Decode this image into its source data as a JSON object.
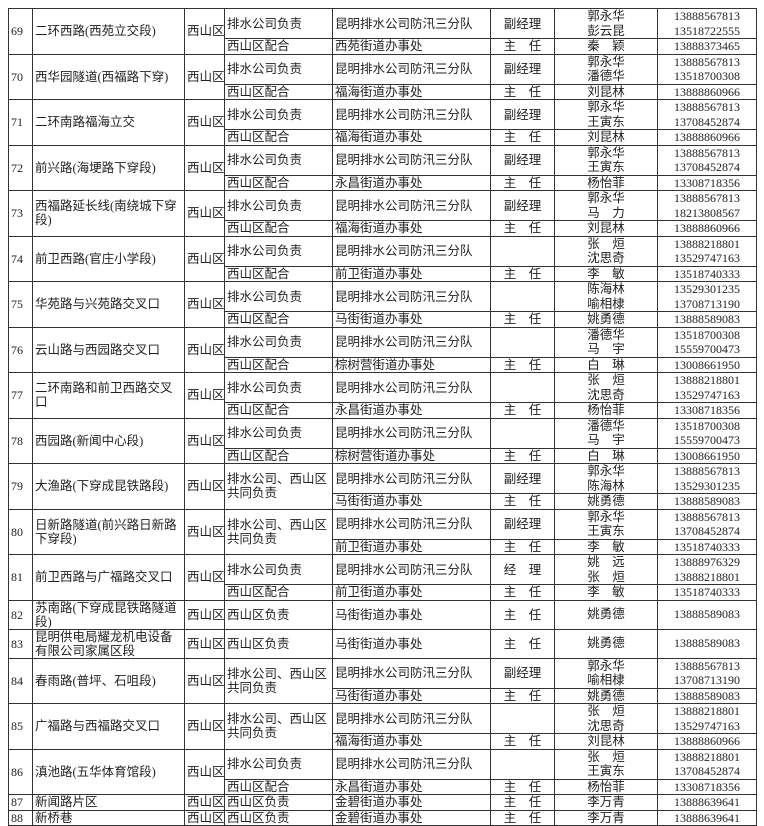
{
  "table": {
    "entries": [
      {
        "no": "69",
        "location": "二环西路(西苑立交段)",
        "district": "西山区",
        "subrows": [
          {
            "resp": "排水公司负责",
            "unit": "昆明排水公司防汛三分队",
            "position": "副经理",
            "names": [
              "郭永华",
              "彭云昆"
            ],
            "phones": [
              "13888567813",
              "13518722555"
            ]
          },
          {
            "resp": "西山区配合",
            "unit": "西苑街道办事处",
            "position": "主　任",
            "names": [
              "秦　颖"
            ],
            "phones": [
              "13888373465"
            ]
          }
        ]
      },
      {
        "no": "70",
        "location": "西华园隧道(西福路下穿)",
        "district": "西山区",
        "subrows": [
          {
            "resp": "排水公司负责",
            "unit": "昆明排水公司防汛三分队",
            "position": "副经理",
            "names": [
              "郭永华",
              "潘德华"
            ],
            "phones": [
              "13888567813",
              "13518700308"
            ]
          },
          {
            "resp": "西山区配合",
            "unit": "福海街道办事处",
            "position": "主　任",
            "names": [
              "刘昆林"
            ],
            "phones": [
              "13888860966"
            ]
          }
        ]
      },
      {
        "no": "71",
        "location": "二环南路福海立交",
        "district": "西山区",
        "subrows": [
          {
            "resp": "排水公司负责",
            "unit": "昆明排水公司防汛三分队",
            "position": "副经理",
            "names": [
              "郭永华",
              "王寅东"
            ],
            "phones": [
              "13888567813",
              "13708452874"
            ]
          },
          {
            "resp": "西山区配合",
            "unit": "福海街道办事处",
            "position": "主　任",
            "names": [
              "刘昆林"
            ],
            "phones": [
              "13888860966"
            ]
          }
        ]
      },
      {
        "no": "72",
        "location": "前兴路(海埂路下穿段)",
        "district": "西山区",
        "subrows": [
          {
            "resp": "排水公司负责",
            "unit": "昆明排水公司防汛三分队",
            "position": "副经理",
            "names": [
              "郭永华",
              "王寅东"
            ],
            "phones": [
              "13888567813",
              "13708452874"
            ]
          },
          {
            "resp": "西山区配合",
            "unit": "永昌街道办事处",
            "position": "主　任",
            "names": [
              "杨怡菲"
            ],
            "phones": [
              "13308718356"
            ]
          }
        ]
      },
      {
        "no": "73",
        "location": "西福路延长线(南绕城下穿段)",
        "district": "西山区",
        "subrows": [
          {
            "resp": "排水公司负责",
            "unit": "昆明排水公司防汛三分队",
            "position": "副经理",
            "names": [
              "郭永华",
              "马　力"
            ],
            "phones": [
              "13888567813",
              "18213808567"
            ]
          },
          {
            "resp": "西山区配合",
            "unit": "福海街道办事处",
            "position": "主　任",
            "names": [
              "刘昆林"
            ],
            "phones": [
              "13888860966"
            ]
          }
        ]
      },
      {
        "no": "74",
        "location": "前卫西路(官庄小学段)",
        "district": "西山区",
        "subrows": [
          {
            "resp": "排水公司负责",
            "unit": "昆明排水公司防汛三分队",
            "position": "",
            "names": [
              "张　烜",
              "沈思奇"
            ],
            "phones": [
              "13888218801",
              "13529747163"
            ]
          },
          {
            "resp": "西山区配合",
            "unit": "前卫街道办事处",
            "position": "主　任",
            "names": [
              "李　敏"
            ],
            "phones": [
              "13518740333"
            ]
          }
        ]
      },
      {
        "no": "75",
        "location": "华苑路与兴苑路交叉口",
        "district": "西山区",
        "subrows": [
          {
            "resp": "排水公司负责",
            "unit": "昆明排水公司防汛三分队",
            "position": "",
            "names": [
              "陈海林",
              "喻相棣"
            ],
            "phones": [
              "13529301235",
              "13708713190"
            ]
          },
          {
            "resp": "西山区配合",
            "unit": "马街街道办事处",
            "position": "主　任",
            "names": [
              "姚勇德"
            ],
            "phones": [
              "13888589083"
            ]
          }
        ]
      },
      {
        "no": "76",
        "location": "云山路与西园路交叉口",
        "district": "西山区",
        "subrows": [
          {
            "resp": "排水公司负责",
            "unit": "昆明排水公司防汛三分队",
            "position": "",
            "names": [
              "潘德华",
              "马　宇"
            ],
            "phones": [
              "13518700308",
              "15559700473"
            ]
          },
          {
            "resp": "西山区配合",
            "unit": "棕树营街道办事处",
            "position": "主　任",
            "names": [
              "白　琳"
            ],
            "phones": [
              "13008661950"
            ]
          }
        ]
      },
      {
        "no": "77",
        "location": "二环南路和前卫西路交叉口",
        "district": "西山区",
        "subrows": [
          {
            "resp": "排水公司负责",
            "unit": "昆明排水公司防汛三分队",
            "position": "",
            "names": [
              "张　烜",
              "沈思奇"
            ],
            "phones": [
              "13888218801",
              "13529747163"
            ]
          },
          {
            "resp": "西山区配合",
            "unit": "永昌街道办事处",
            "position": "主　任",
            "names": [
              "杨怡菲"
            ],
            "phones": [
              "13308718356"
            ]
          }
        ]
      },
      {
        "no": "78",
        "location": "西园路(新闻中心段)",
        "district": "西山区",
        "subrows": [
          {
            "resp": "排水公司负责",
            "unit": "昆明排水公司防汛三分队",
            "position": "",
            "names": [
              "潘德华",
              "马　宇"
            ],
            "phones": [
              "13518700308",
              "15559700473"
            ]
          },
          {
            "resp": "西山区配合",
            "unit": "棕树营街道办事处",
            "position": "主　任",
            "names": [
              "白　琳"
            ],
            "phones": [
              "13008661950"
            ]
          }
        ]
      },
      {
        "no": "79",
        "location": "大渔路(下穿成昆铁路段)",
        "district": "西山区",
        "shared_resp": "排水公司、西山区共同负责",
        "subrows": [
          {
            "unit": "昆明排水公司防汛三分队",
            "position": "副经理",
            "names": [
              "郭永华",
              "陈海林"
            ],
            "phones": [
              "13888567813",
              "13529301235"
            ]
          },
          {
            "unit": "马街街道办事处",
            "position": "主　任",
            "names": [
              "姚勇德"
            ],
            "phones": [
              "13888589083"
            ]
          }
        ]
      },
      {
        "no": "80",
        "location": "日新路隧道(前兴路日新路下穿段)",
        "district": "西山区",
        "shared_resp": "排水公司、西山区共同负责",
        "subrows": [
          {
            "unit": "昆明排水公司防汛三分队",
            "position": "副经理",
            "names": [
              "郭永华",
              "王寅东"
            ],
            "phones": [
              "13888567813",
              "13708452874"
            ]
          },
          {
            "unit": "前卫街道办事处",
            "position": "主　任",
            "names": [
              "李　敏"
            ],
            "phones": [
              "13518740333"
            ]
          }
        ]
      },
      {
        "no": "81",
        "location": "前卫西路与广福路交叉口",
        "district": "西山区",
        "subrows": [
          {
            "resp": "排水公司负责",
            "unit": "昆明排水公司防汛三分队",
            "position": "经　理",
            "names": [
              "姚　远",
              "张　烜"
            ],
            "phones": [
              "13888976329",
              "13888218801"
            ]
          },
          {
            "resp": "西山区配合",
            "unit": "前卫街道办事处",
            "position": "主　任",
            "names": [
              "李　敏"
            ],
            "phones": [
              "13518740333"
            ]
          }
        ]
      },
      {
        "no": "82",
        "location": "苏南路(下穿成昆铁路隧道段)",
        "district": "西山区",
        "subrows": [
          {
            "resp": "西山区负责",
            "unit": "马街街道办事处",
            "position": "主　任",
            "names": [
              "姚勇德"
            ],
            "phones": [
              "13888589083"
            ]
          }
        ]
      },
      {
        "no": "83",
        "location": "昆明供电局耀龙机电设备有限公司家属区段",
        "district": "西山区",
        "subrows": [
          {
            "resp": "西山区负责",
            "unit": "马街街道办事处",
            "position": "主　任",
            "names": [
              "姚勇德"
            ],
            "phones": [
              "13888589083"
            ]
          }
        ]
      },
      {
        "no": "84",
        "location": "春雨路(普坪、石咀段)",
        "district": "西山区",
        "shared_resp": "排水公司、西山区共同负责",
        "subrows": [
          {
            "unit": "昆明排水公司防汛三分队",
            "position": "副经理",
            "names": [
              "郭永华",
              "喻相棣"
            ],
            "phones": [
              "13888567813",
              "13708713190"
            ]
          },
          {
            "unit": "马街街道办事处",
            "position": "主　任",
            "names": [
              "姚勇德"
            ],
            "phones": [
              "13888589083"
            ]
          }
        ]
      },
      {
        "no": "85",
        "location": "广福路与西福路交叉口",
        "district": "西山区",
        "shared_resp": "排水公司、西山区共同负责",
        "subrows": [
          {
            "unit": "昆明排水公司防汛三分队",
            "position": "",
            "names": [
              "张　烜",
              "沈思奇"
            ],
            "phones": [
              "13888218801",
              "13529747163"
            ]
          },
          {
            "unit": "福海街道办事处",
            "position": "主　任",
            "names": [
              "刘昆林"
            ],
            "phones": [
              "13888860966"
            ]
          }
        ]
      },
      {
        "no": "86",
        "location": "滇池路(五华体育馆段)",
        "district": "西山区",
        "subrows": [
          {
            "resp": "排水公司负责",
            "unit": "昆明排水公司防汛三分队",
            "position": "",
            "names": [
              "张　烜",
              "王寅东"
            ],
            "phones": [
              "13888218801",
              "13708452874"
            ]
          },
          {
            "resp": "西山区配合",
            "unit": "永昌街道办事处",
            "position": "主　任",
            "names": [
              "杨怡菲"
            ],
            "phones": [
              "13308718356"
            ]
          }
        ]
      },
      {
        "no": "87",
        "location": "新闻路片区",
        "district": "西山区",
        "subrows": [
          {
            "resp": "西山区负责",
            "unit": "金碧街道办事处",
            "position": "主　任",
            "names": [
              "李万青"
            ],
            "phones": [
              "13888639641"
            ]
          }
        ]
      },
      {
        "no": "88",
        "location": "新桥巷",
        "district": "西山区",
        "subrows": [
          {
            "resp": "西山区负责",
            "unit": "金碧街道办事处",
            "position": "主　任",
            "names": [
              "李万青"
            ],
            "phones": [
              "13888639641"
            ]
          }
        ]
      }
    ]
  }
}
